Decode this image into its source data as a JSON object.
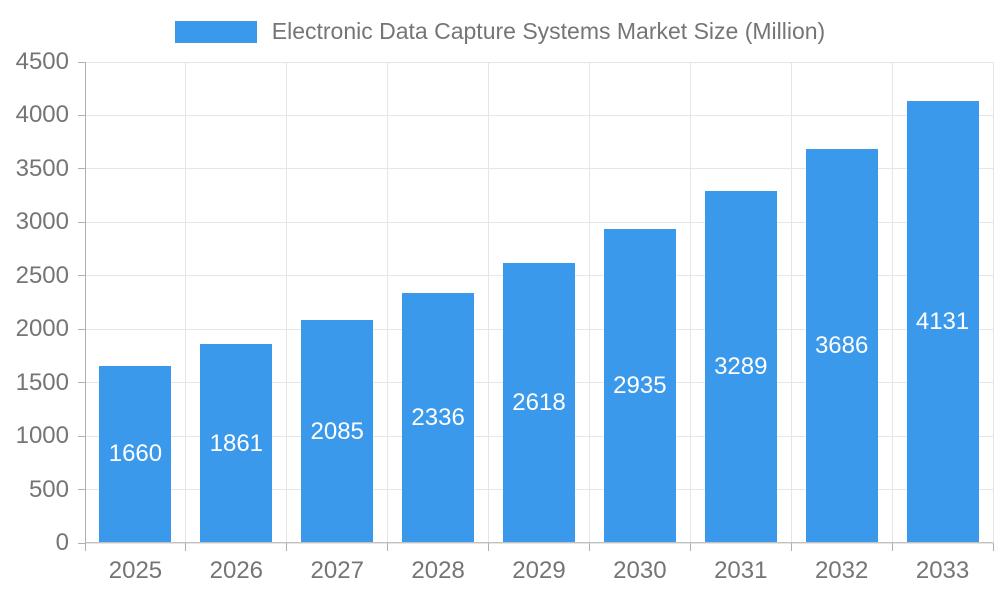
{
  "legend": {
    "label": "Electronic Data Capture Systems Market Size (Million)"
  },
  "chart_data": {
    "type": "bar",
    "title": "Electronic Data Capture Systems Market Size (Million)",
    "categories": [
      "2025",
      "2026",
      "2027",
      "2028",
      "2029",
      "2030",
      "2031",
      "2032",
      "2033"
    ],
    "series": [
      {
        "name": "Electronic Data Capture Systems Market Size (Million)",
        "values": [
          1660,
          1861,
          2085,
          2336,
          2618,
          2935,
          3289,
          3686,
          4131
        ]
      }
    ],
    "values": [
      1660,
      1861,
      2085,
      2336,
      2618,
      2935,
      3289,
      3686,
      4131
    ],
    "bar_labels": [
      "1660",
      "1861",
      "2085",
      "2336",
      "2618",
      "2935",
      "3289",
      "3686",
      "4131"
    ],
    "xlabel": "",
    "ylabel": "",
    "ylim": [
      0,
      4500
    ],
    "yticks": [
      0,
      500,
      1000,
      1500,
      2000,
      2500,
      3000,
      3500,
      4000,
      4500
    ],
    "grid": true,
    "legend_position": "top-center",
    "colors": {
      "bar": "#3b99ec",
      "bar_label": "#ffffff",
      "axis_label": "#757575",
      "legend_label": "#757575",
      "gridline": "#e6e6e6",
      "axis_line": "#b0b0b0",
      "background": "#ffffff"
    }
  }
}
